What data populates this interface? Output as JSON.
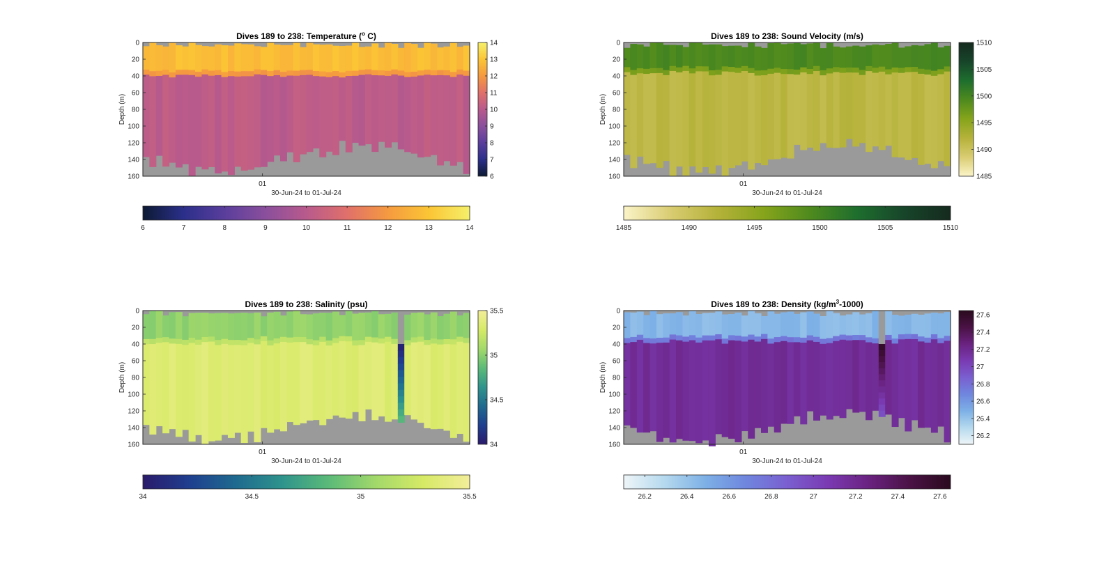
{
  "figure": {
    "background": "#ffffff",
    "missing_color": "#9a9a9a"
  },
  "chart_data": [
    {
      "type": "heatmap",
      "id": "temperature",
      "title": "Dives 189 to 238: Temperature (",
      "title_sup": "o",
      "title_tail": " C)",
      "xlabel": "30-Jun-24 to 01-Jul-24",
      "ylabel": "Depth (m)",
      "x_ticks": [
        "01"
      ],
      "x_range": [
        "30-Jun-24",
        "01-Jul-24"
      ],
      "ylim": [
        0,
        160
      ],
      "y_reversed": true,
      "y_ticks": [
        0,
        20,
        40,
        60,
        80,
        100,
        120,
        140,
        160
      ],
      "dives": [
        189,
        238
      ],
      "colormap": [
        "#0d1a33",
        "#2b2f8a",
        "#5a3e9c",
        "#8a4f9c",
        "#b85a8c",
        "#e0706a",
        "#f59a40",
        "#fbc535",
        "#f5f06a"
      ],
      "clim": [
        6,
        14
      ],
      "colorbar_ticks": [
        6,
        7,
        8,
        9,
        10,
        11,
        12,
        13,
        14
      ],
      "colorbar_h_ticks": [
        6,
        7,
        8,
        9,
        10,
        11,
        12,
        13,
        14
      ],
      "layers": [
        {
          "from_depth": 0,
          "to_depth": 30,
          "value": 12.8
        },
        {
          "from_depth": 30,
          "to_depth": 42,
          "value": 12.0
        },
        {
          "from_depth": 42,
          "to_depth": 160,
          "value": 10.1
        }
      ],
      "thermocline_depth": [
        38,
        42
      ]
    },
    {
      "type": "heatmap",
      "id": "sound_velocity",
      "title": "Dives 189 to 238: Sound Velocity (m/s)",
      "xlabel": "30-Jun-24 to 01-Jul-24",
      "ylabel": "Depth (m)",
      "x_ticks": [
        "01"
      ],
      "x_range": [
        "30-Jun-24",
        "01-Jul-24"
      ],
      "ylim": [
        0,
        160
      ],
      "y_reversed": true,
      "y_ticks": [
        0,
        20,
        40,
        60,
        80,
        100,
        120,
        140,
        160
      ],
      "dives": [
        189,
        238
      ],
      "colormap": [
        "#fbf4c8",
        "#d9cc72",
        "#b5b23a",
        "#86a41c",
        "#4e8a1e",
        "#1e6e2e",
        "#17452a",
        "#152a1e"
      ],
      "clim": [
        1485,
        1510
      ],
      "colorbar_ticks": [
        1485,
        1490,
        1495,
        1500,
        1505,
        1510
      ],
      "colorbar_h_ticks": [
        1485,
        1490,
        1495,
        1500,
        1505,
        1510
      ],
      "layers": [
        {
          "from_depth": 0,
          "to_depth": 28,
          "value": 1499.5
        },
        {
          "from_depth": 28,
          "to_depth": 40,
          "value": 1496.5
        },
        {
          "from_depth": 40,
          "to_depth": 160,
          "value": 1491.5
        }
      ],
      "thermocline_depth": [
        34,
        40
      ]
    },
    {
      "type": "heatmap",
      "id": "salinity",
      "title": "Dives 189 to 238: Salinity (psu)",
      "xlabel": "30-Jun-24 to 01-Jul-24",
      "ylabel": "Depth (m)",
      "x_ticks": [
        "01"
      ],
      "x_range": [
        "30-Jun-24",
        "01-Jul-24"
      ],
      "ylim": [
        0,
        160
      ],
      "y_reversed": true,
      "y_ticks": [
        0,
        20,
        40,
        60,
        80,
        100,
        120,
        140,
        160
      ],
      "dives": [
        189,
        238
      ],
      "colormap": [
        "#2a1a6b",
        "#1f3f8f",
        "#1f6a8f",
        "#2f948c",
        "#5cbb78",
        "#a3d96a",
        "#d6ea66",
        "#f3ee9a"
      ],
      "clim": [
        34,
        35.5
      ],
      "colorbar_ticks": [
        34,
        34.5,
        35,
        35.5
      ],
      "colorbar_h_ticks": [
        34,
        34.5,
        35,
        35.5
      ],
      "layers": [
        {
          "from_depth": 0,
          "to_depth": 30,
          "value": 35.02
        },
        {
          "from_depth": 30,
          "to_depth": 42,
          "value": 35.18
        },
        {
          "from_depth": 42,
          "to_depth": 160,
          "value": 35.34
        }
      ],
      "thermocline_depth": [
        36,
        42
      ],
      "anomaly_column": {
        "dive": 228,
        "values_top": 34.05,
        "values_bottom": 34.9
      }
    },
    {
      "type": "heatmap",
      "id": "density",
      "title": "Dives 189 to 238: Density (kg/m",
      "title_sup": "3",
      "title_tail": "-1000)",
      "xlabel": "30-Jun-24 to 01-Jul-24",
      "ylabel": "Depth (m)",
      "x_ticks": [
        "01"
      ],
      "x_range": [
        "30-Jun-24",
        "01-Jul-24"
      ],
      "ylim": [
        0,
        160
      ],
      "y_reversed": true,
      "y_ticks": [
        0,
        20,
        40,
        60,
        80,
        100,
        120,
        140,
        160
      ],
      "dives": [
        189,
        238
      ],
      "colormap": [
        "#eef5f8",
        "#b5d9ee",
        "#7db0e6",
        "#6f86de",
        "#7a5fd0",
        "#7a3ab2",
        "#6a2280",
        "#4a1245",
        "#2a0a1e"
      ],
      "clim": [
        26.1,
        27.65
      ],
      "colorbar_ticks": [
        26.2,
        26.4,
        26.6,
        26.8,
        27,
        27.2,
        27.4,
        27.6
      ],
      "colorbar_h_ticks": [
        26.2,
        26.4,
        26.6,
        26.8,
        27,
        27.2,
        27.4,
        27.6
      ],
      "layers": [
        {
          "from_depth": 0,
          "to_depth": 30,
          "value": 26.45
        },
        {
          "from_depth": 30,
          "to_depth": 42,
          "value": 26.75
        },
        {
          "from_depth": 42,
          "to_depth": 160,
          "value": 27.17
        }
      ],
      "thermocline_depth": [
        34,
        40
      ],
      "anomaly_column": {
        "dive": 228,
        "values_top": 27.6,
        "values_bottom": 26.9
      }
    }
  ]
}
